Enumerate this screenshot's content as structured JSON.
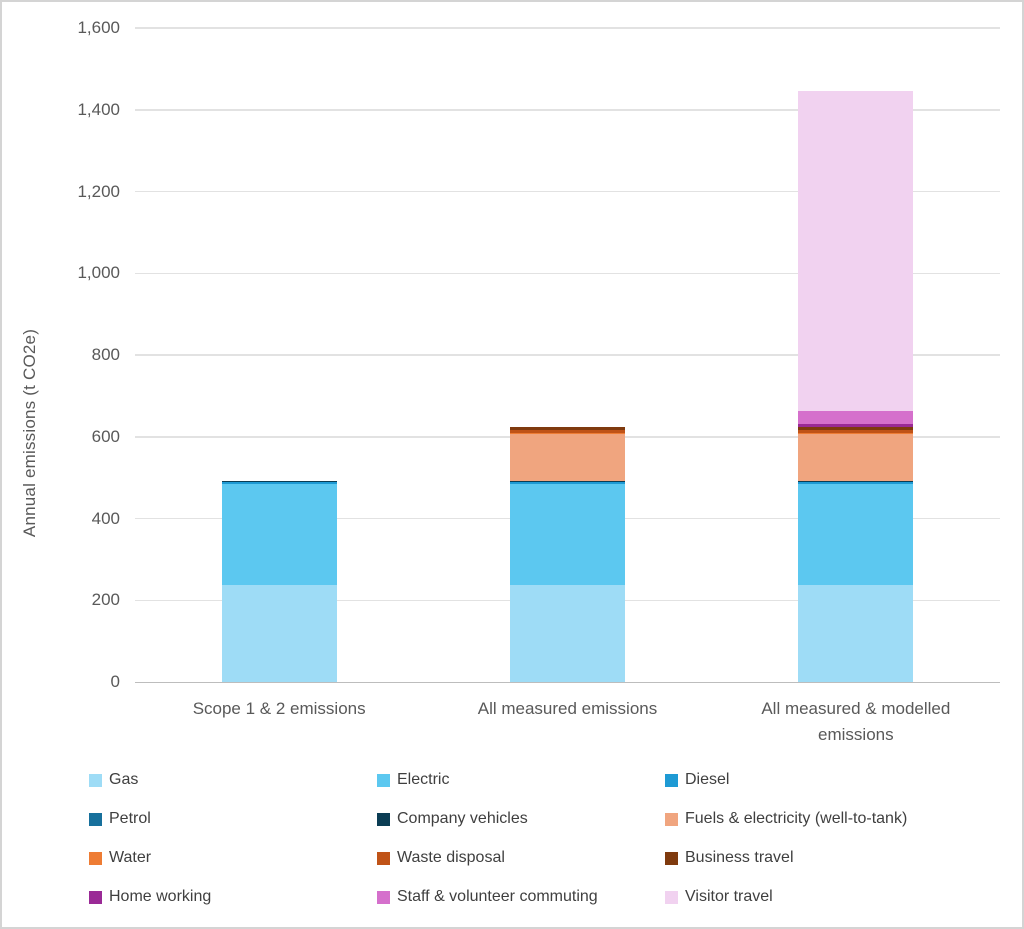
{
  "chart_data": {
    "type": "bar",
    "stacked": true,
    "title": "",
    "xlabel": "",
    "ylabel": "Annual emissions (t CO2e)",
    "ylim": [
      0,
      1600
    ],
    "yticks": [
      0,
      200,
      400,
      600,
      800,
      1000,
      1200,
      1400,
      1600
    ],
    "ytick_labels": [
      "0",
      "200",
      "400",
      "600",
      "800",
      "1,000",
      "1,200",
      "1,400",
      "1,600"
    ],
    "grid": true,
    "legend_position": "bottom",
    "categories": [
      "Scope 1 & 2 emissions",
      "All measured emissions",
      "All measured & modelled emissions"
    ],
    "category_totals": [
      493,
      625,
      1447
    ],
    "series": [
      {
        "name": "Gas",
        "color": "#9edcf6",
        "values": [
          237,
          237,
          237
        ]
      },
      {
        "name": "Electric",
        "color": "#5cc8f0",
        "values": [
          248,
          248,
          248
        ]
      },
      {
        "name": "Diesel",
        "color": "#1e9ad4",
        "values": [
          5,
          5,
          5
        ]
      },
      {
        "name": "Petrol",
        "color": "#17709c",
        "values": [
          1.5,
          1.5,
          1.5
        ]
      },
      {
        "name": "Company vehicles",
        "color": "#0b3d54",
        "values": [
          1.5,
          1.5,
          1.5
        ]
      },
      {
        "name": "Fuels & electricity (well-to-tank)",
        "color": "#f0a57f",
        "values": [
          0,
          115,
          115
        ]
      },
      {
        "name": "Water",
        "color": "#ee7c34",
        "values": [
          0,
          1,
          1
        ]
      },
      {
        "name": "Waste disposal",
        "color": "#c05317",
        "values": [
          0,
          7,
          7
        ]
      },
      {
        "name": "Business travel",
        "color": "#7f3a0e",
        "values": [
          0,
          9,
          9
        ]
      },
      {
        "name": "Home working",
        "color": "#9a2a96",
        "values": [
          0,
          0,
          7
        ]
      },
      {
        "name": "Staff & volunteer commuting",
        "color": "#d570cc",
        "values": [
          0,
          0,
          30
        ]
      },
      {
        "name": "Visitor travel",
        "color": "#f1d2f0",
        "values": [
          0,
          0,
          785
        ]
      }
    ]
  }
}
